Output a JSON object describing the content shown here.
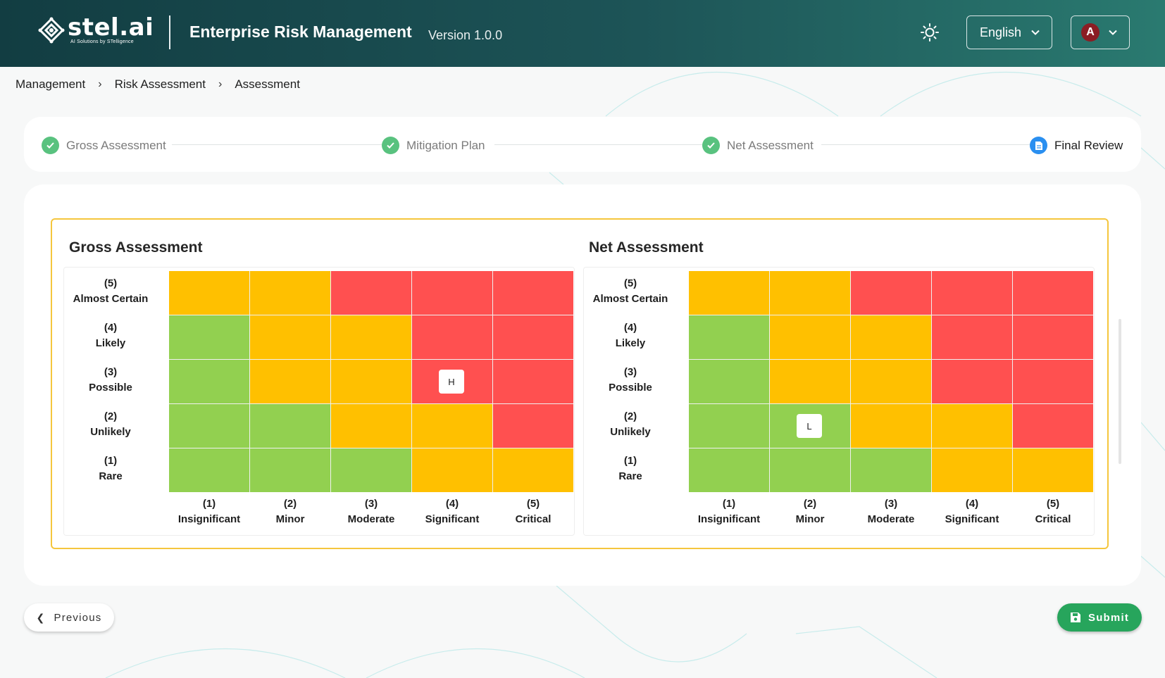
{
  "header": {
    "logo_name": "stel.ai",
    "logo_tagline": "AI Solutions by STelligence",
    "app_title": "Enterprise Risk Management",
    "version": "Version 1.0.0",
    "language": "English",
    "user_initial": "A"
  },
  "breadcrumb": [
    "Management",
    "Risk Assessment",
    "Assessment"
  ],
  "stepper": {
    "steps": [
      {
        "label": "Gross Assessment",
        "status": "complete"
      },
      {
        "label": "Mitigation Plan",
        "status": "complete"
      },
      {
        "label": "Net Assessment",
        "status": "complete"
      },
      {
        "label": "Final Review",
        "status": "active"
      }
    ]
  },
  "matrix_axes": {
    "likelihood": [
      {
        "num": "(5)",
        "label": "Almost Certain"
      },
      {
        "num": "(4)",
        "label": "Likely"
      },
      {
        "num": "(3)",
        "label": "Possible"
      },
      {
        "num": "(2)",
        "label": "Unlikely"
      },
      {
        "num": "(1)",
        "label": "Rare"
      }
    ],
    "impact": [
      {
        "num": "(1)",
        "label": "Insignificant"
      },
      {
        "num": "(2)",
        "label": "Minor"
      },
      {
        "num": "(3)",
        "label": "Moderate"
      },
      {
        "num": "(4)",
        "label": "Significant"
      },
      {
        "num": "(5)",
        "label": "Critical"
      }
    ]
  },
  "matrices": [
    {
      "title": "Gross Assessment",
      "marker": {
        "text": "H",
        "likelihood": 3,
        "impact": 4
      },
      "cells": [
        [
          "y",
          "y",
          "r",
          "r",
          "r"
        ],
        [
          "g",
          "y",
          "y",
          "r",
          "r"
        ],
        [
          "g",
          "y",
          "y",
          "r",
          "r"
        ],
        [
          "g",
          "g",
          "y",
          "y",
          "r"
        ],
        [
          "g",
          "g",
          "g",
          "y",
          "y"
        ]
      ]
    },
    {
      "title": "Net Assessment",
      "marker": {
        "text": "L",
        "likelihood": 2,
        "impact": 2
      },
      "cells": [
        [
          "y",
          "y",
          "r",
          "r",
          "r"
        ],
        [
          "g",
          "y",
          "y",
          "r",
          "r"
        ],
        [
          "g",
          "y",
          "y",
          "r",
          "r"
        ],
        [
          "g",
          "g",
          "y",
          "y",
          "r"
        ],
        [
          "g",
          "g",
          "g",
          "y",
          "y"
        ]
      ]
    }
  ],
  "colors": {
    "g": "#92d050",
    "y": "#ffc000",
    "r": "#ff5050",
    "accent": "#27a55c",
    "header": "#1d5457"
  },
  "footer": {
    "previous_label": "Previous",
    "submit_label": "Submit"
  }
}
